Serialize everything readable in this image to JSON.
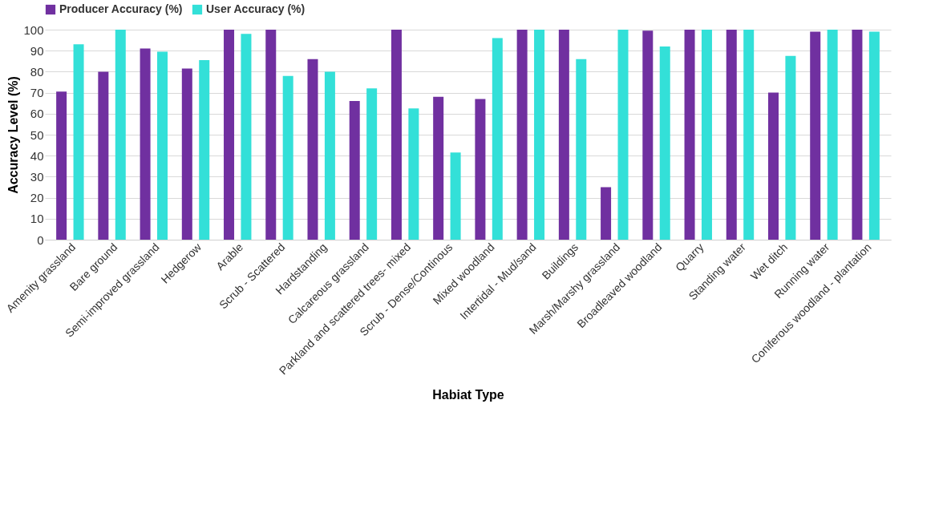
{
  "chart_data": {
    "type": "bar",
    "xlabel": "Habiat Type",
    "ylabel": "Accuracy Level (%)",
    "categories": [
      "Amenity grassland",
      "Bare ground",
      "Semi-improved grassland",
      "Hedgerow",
      "Arable",
      "Scrub - Scattered",
      "Hardstanding",
      "Calcareous grassland",
      "Parkland and scattered trees- mixed",
      "Scrub - Dense/Continous",
      "Mixed woodland",
      "Intertidal - Mud/sand",
      "Buildings",
      "Marsh/Marshy grassland",
      "Broadleaved woodland",
      "Quarry",
      "Standing water",
      "Wet ditch",
      "Running water",
      "Coniferous woodland - plantation"
    ],
    "series": [
      {
        "name": "Producer Accuracy (%)",
        "color": "#7030a0",
        "values": [
          70.5,
          80,
          91,
          81.5,
          100,
          100,
          86,
          66,
          100,
          68,
          67,
          100,
          100,
          25,
          99.5,
          100,
          100,
          70,
          99,
          100
        ]
      },
      {
        "name": "User Accuracy (%)",
        "color": "#33e0d8",
        "values": [
          93,
          100,
          89.5,
          85.5,
          98,
          78,
          80,
          72,
          62.5,
          41.5,
          96,
          100,
          86,
          100,
          92,
          100,
          100,
          87.5,
          100,
          99
        ]
      }
    ],
    "ylim": [
      0,
      100
    ],
    "yticks": [
      0,
      10,
      20,
      30,
      40,
      50,
      60,
      70,
      80,
      90,
      100
    ],
    "grid": "y",
    "legend": "top"
  }
}
